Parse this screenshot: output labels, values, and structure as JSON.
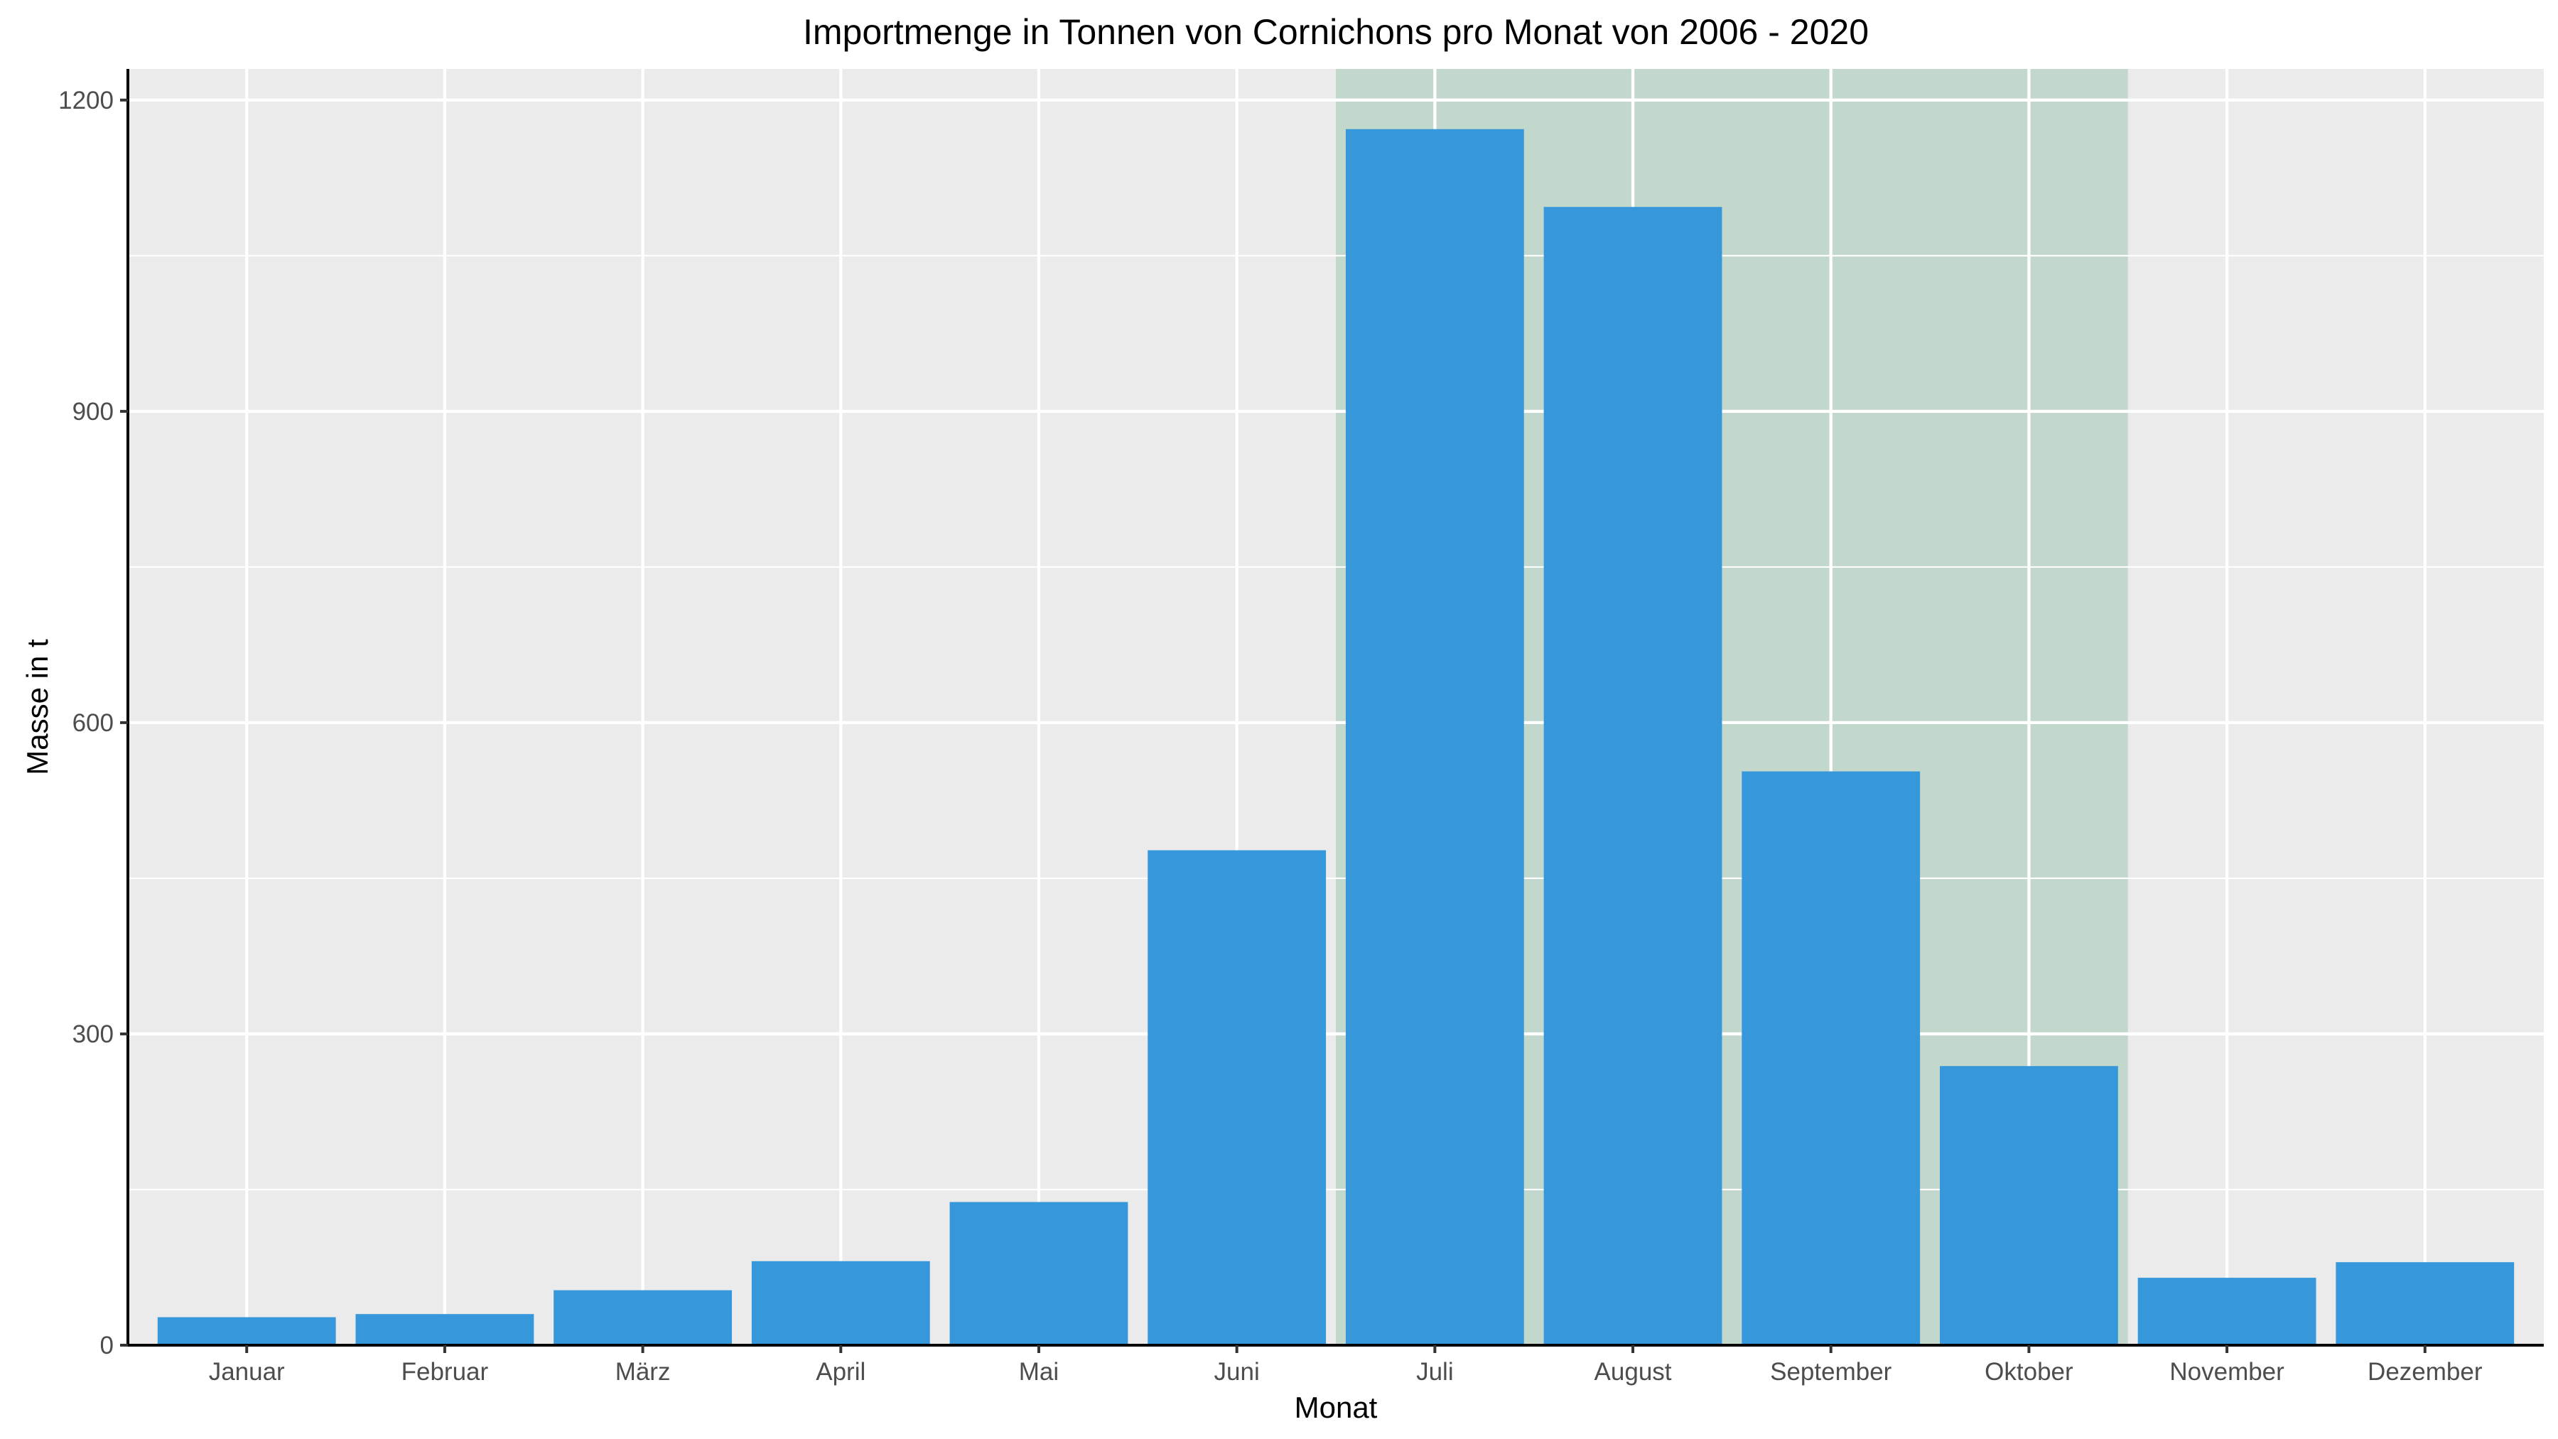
{
  "chart_data": {
    "type": "bar",
    "title": "Importmenge in Tonnen von Cornichons pro Monat von 2006 - 2020",
    "xlabel": "Monat",
    "ylabel": "Masse in t",
    "categories": [
      "Januar",
      "Februar",
      "März",
      "April",
      "Mai",
      "Juni",
      "Juli",
      "August",
      "September",
      "Oktober",
      "November",
      "Dezember"
    ],
    "values": [
      27,
      30,
      53,
      81,
      138,
      477,
      1172,
      1097,
      553,
      269,
      65,
      80
    ],
    "ylim": [
      0,
      1230
    ],
    "yticks": [
      0,
      300,
      600,
      900,
      1200
    ],
    "highlight": {
      "from": "Juli",
      "to": "Oktober",
      "color": "#c3d8cd"
    },
    "colors": {
      "bar": "#3697da",
      "panel": "#ebebeb"
    },
    "grid": true
  }
}
